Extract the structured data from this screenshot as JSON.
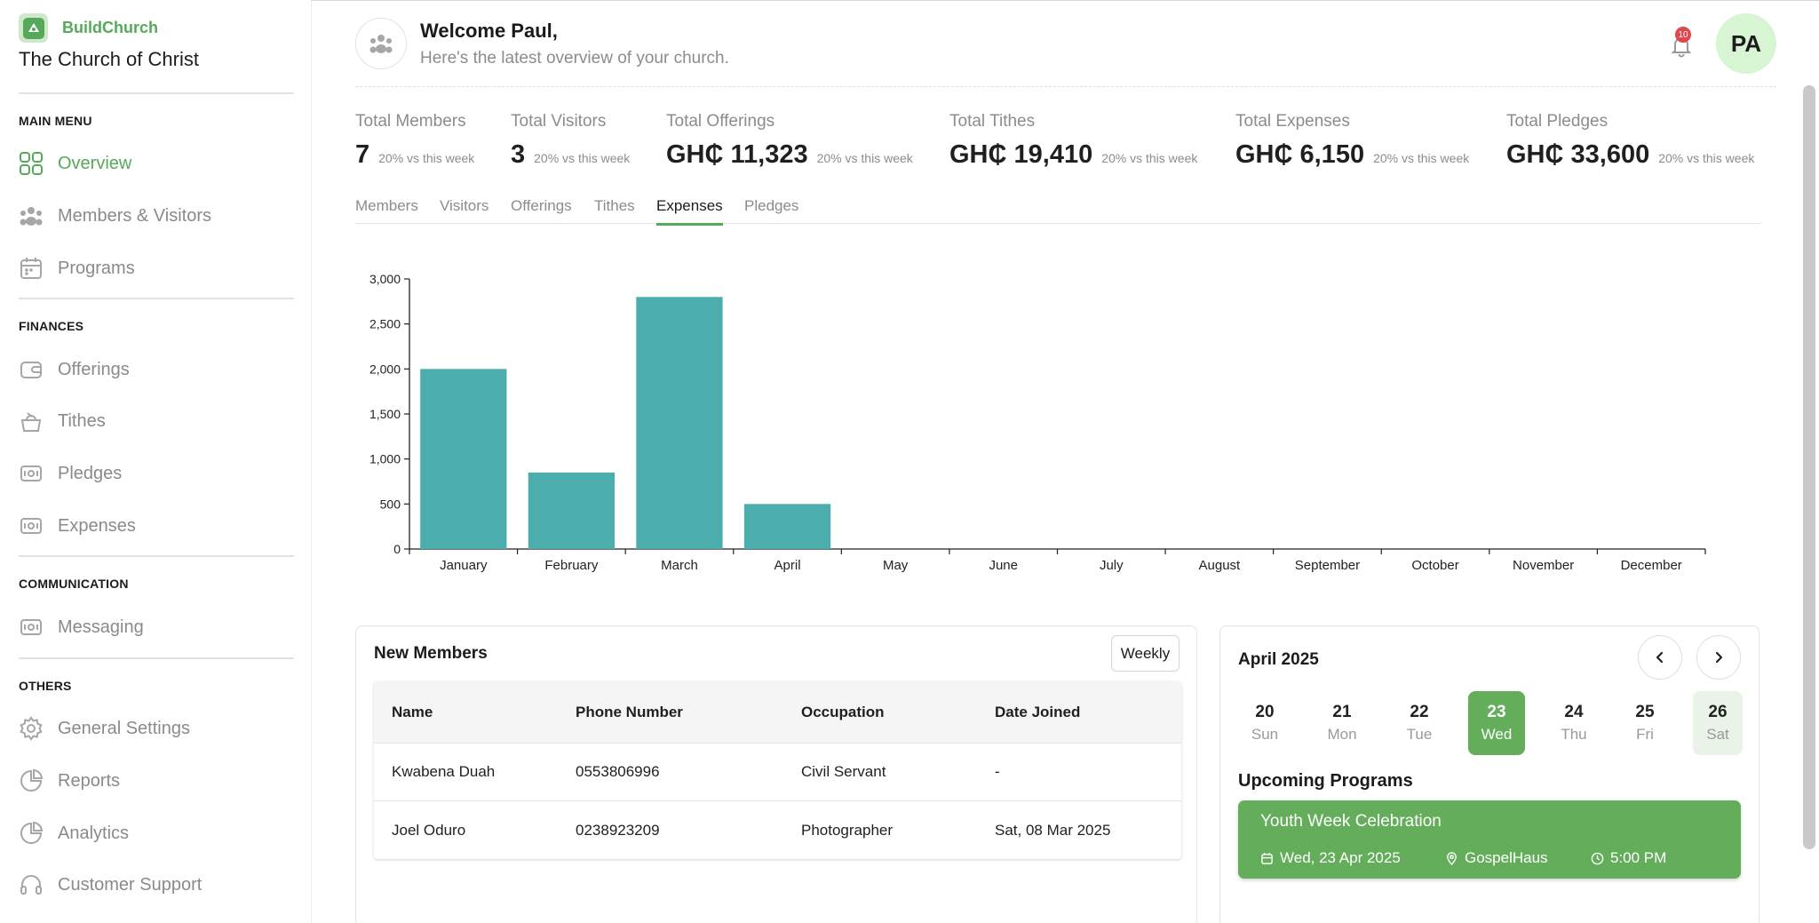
{
  "brand": {
    "name": "BuildChurch",
    "church": "The Church of Christ"
  },
  "sidebar": {
    "sections": [
      {
        "label": "MAIN MENU"
      },
      {
        "label": "FINANCES"
      },
      {
        "label": "COMMUNICATION"
      },
      {
        "label": "OTHERS"
      }
    ],
    "items": [
      {
        "label": "Overview",
        "icon": "grid-icon",
        "active": true
      },
      {
        "label": "Members & Visitors",
        "icon": "people-icon"
      },
      {
        "label": "Programs",
        "icon": "calendar-icon"
      },
      {
        "label": "Offerings",
        "icon": "wallet-icon"
      },
      {
        "label": "Tithes",
        "icon": "basket-icon"
      },
      {
        "label": "Pledges",
        "icon": "money-icon"
      },
      {
        "label": "Expenses",
        "icon": "money-icon"
      },
      {
        "label": "Messaging",
        "icon": "money-icon"
      },
      {
        "label": "General Settings",
        "icon": "gear-icon"
      },
      {
        "label": "Reports",
        "icon": "pie-chart-icon"
      },
      {
        "label": "Analytics",
        "icon": "pie-chart-icon"
      },
      {
        "label": "Customer Support",
        "icon": "headset-icon"
      }
    ]
  },
  "header": {
    "welcome": "Welcome Paul,",
    "subtitle": "Here's the latest overview of your church.",
    "notification_count": "10",
    "user_initials": "PA"
  },
  "stats": [
    {
      "label": "Total Members",
      "value": "7",
      "delta": "20% vs this week"
    },
    {
      "label": "Total Visitors",
      "value": "3",
      "delta": "20% vs this week"
    },
    {
      "label": "Total Offerings",
      "value": "GH₵ 11,323",
      "delta": "20% vs this week"
    },
    {
      "label": "Total Tithes",
      "value": "GH₵ 19,410",
      "delta": "20% vs this week"
    },
    {
      "label": "Total Expenses",
      "value": "GH₵ 6,150",
      "delta": "20% vs this week"
    },
    {
      "label": "Total Pledges",
      "value": "GH₵ 33,600",
      "delta": "20% vs this week"
    }
  ],
  "tabs": [
    {
      "label": "Members"
    },
    {
      "label": "Visitors"
    },
    {
      "label": "Offerings"
    },
    {
      "label": "Tithes"
    },
    {
      "label": "Expenses",
      "active": true
    },
    {
      "label": "Pledges"
    }
  ],
  "chart_data": {
    "type": "bar",
    "categories": [
      "January",
      "February",
      "March",
      "April",
      "May",
      "June",
      "July",
      "August",
      "September",
      "October",
      "November",
      "December"
    ],
    "values": [
      2000,
      850,
      2800,
      500,
      0,
      0,
      0,
      0,
      0,
      0,
      0,
      0
    ],
    "ylim": [
      0,
      3000
    ],
    "yticks": [
      0,
      500,
      1000,
      1500,
      2000,
      2500,
      3000
    ],
    "ytick_labels": [
      "0",
      "500",
      "1,000",
      "1,500",
      "2,000",
      "2,500",
      "3,000"
    ],
    "bar_color": "#4caeac",
    "grid": false
  },
  "members_card": {
    "title": "New Members",
    "filter_label": "Weekly",
    "columns": [
      "Name",
      "Phone Number",
      "Occupation",
      "Date Joined"
    ],
    "rows": [
      [
        "Kwabena Duah",
        "0553806996",
        "Civil Servant",
        "-"
      ],
      [
        "Joel Oduro",
        "0238923209",
        "Photographer",
        "Sat, 08 Mar 2025"
      ]
    ]
  },
  "calendar": {
    "month": "April 2025",
    "days": [
      {
        "num": "20",
        "name": "Sun"
      },
      {
        "num": "21",
        "name": "Mon"
      },
      {
        "num": "22",
        "name": "Tue"
      },
      {
        "num": "23",
        "name": "Wed",
        "selected": true
      },
      {
        "num": "24",
        "name": "Thu"
      },
      {
        "num": "25",
        "name": "Fri"
      },
      {
        "num": "26",
        "name": "Sat"
      }
    ],
    "upcoming_title": "Upcoming Programs",
    "event": {
      "title": "Youth Week Celebration",
      "date": "Wed, 23 Apr 2025",
      "location": "GospelHaus",
      "time": "5:00 PM"
    }
  },
  "colors": {
    "accent": "#56a95a",
    "bar": "#4caeac",
    "badge": "#e0474c",
    "avatar_bg": "#d8f5d3"
  }
}
